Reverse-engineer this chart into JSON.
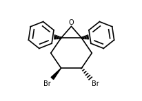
{
  "bg_color": "#ffffff",
  "line_color": "#000000",
  "lw": 1.2,
  "O_label": "O",
  "Br_left": "Br",
  "Br_right": "Br",
  "font_size_O": 7,
  "font_size_Br": 7
}
